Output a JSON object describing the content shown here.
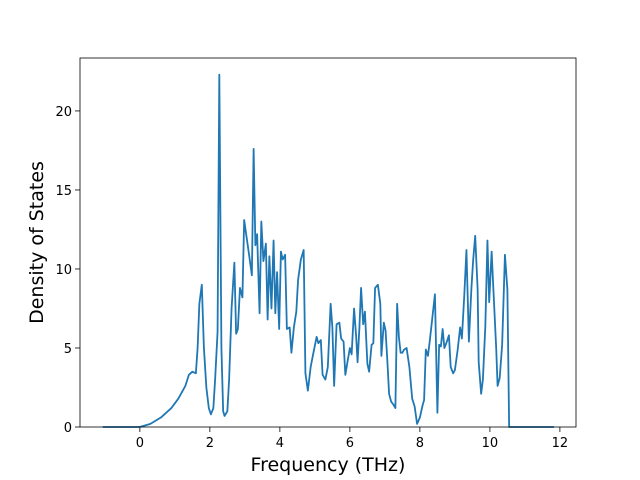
{
  "chart_data": {
    "type": "line",
    "xlabel": "Frequency (THz)",
    "ylabel": "Density of States",
    "color": "#1f77b4",
    "xlim": [
      -1.71,
      12.46
    ],
    "ylim": [
      0,
      23.35
    ],
    "xticks": [
      0,
      2,
      4,
      6,
      8,
      10,
      12
    ],
    "yticks": [
      0,
      5,
      10,
      15,
      20
    ],
    "x": [
      -1.06,
      0,
      0.3,
      0.6,
      0.9,
      1.1,
      1.3,
      1.4,
      1.5,
      1.6,
      1.65,
      1.7,
      1.77,
      1.83,
      1.9,
      1.97,
      2.03,
      2.1,
      2.15,
      2.22,
      2.27,
      2.33,
      2.38,
      2.42,
      2.5,
      2.55,
      2.62,
      2.7,
      2.75,
      2.8,
      2.86,
      2.93,
      2.98,
      3.05,
      3.12,
      3.2,
      3.25,
      3.3,
      3.35,
      3.42,
      3.47,
      3.53,
      3.6,
      3.65,
      3.7,
      3.76,
      3.82,
      3.87,
      3.92,
      3.98,
      4.03,
      4.08,
      4.15,
      4.2,
      4.28,
      4.33,
      4.4,
      4.47,
      4.52,
      4.6,
      4.68,
      4.73,
      4.8,
      4.88,
      4.95,
      5.05,
      5.1,
      5.17,
      5.22,
      5.3,
      5.37,
      5.45,
      5.5,
      5.55,
      5.62,
      5.7,
      5.75,
      5.82,
      5.87,
      5.93,
      6.0,
      6.05,
      6.12,
      6.18,
      6.22,
      6.27,
      6.32,
      6.38,
      6.43,
      6.5,
      6.55,
      6.62,
      6.67,
      6.72,
      6.8,
      6.87,
      6.9,
      6.97,
      7.02,
      7.08,
      7.12,
      7.18,
      7.25,
      7.3,
      7.35,
      7.4,
      7.45,
      7.5,
      7.55,
      7.62,
      7.7,
      7.78,
      7.85,
      7.92,
      8.0,
      8.08,
      8.12,
      8.17,
      8.23,
      8.28,
      8.35,
      8.43,
      8.5,
      8.55,
      8.6,
      8.65,
      8.7,
      8.77,
      8.83,
      8.88,
      8.95,
      9.0,
      9.08,
      9.15,
      9.2,
      9.27,
      9.33,
      9.4,
      9.47,
      9.52,
      9.58,
      9.65,
      9.68,
      9.75,
      9.8,
      9.87,
      9.93,
      9.98,
      10.05,
      10.1,
      10.18,
      10.22,
      10.28,
      10.35,
      10.43,
      10.5,
      10.55,
      10.6,
      11.83
    ],
    "values": [
      0,
      0,
      0.2,
      0.6,
      1.2,
      1.8,
      2.6,
      3.3,
      3.5,
      3.4,
      5,
      7.8,
      9.0,
      5,
      2.5,
      1.2,
      0.8,
      1.2,
      3,
      6,
      22.3,
      5,
      1.0,
      0.7,
      1.0,
      3,
      7.5,
      10.4,
      5.9,
      6.2,
      8.8,
      8.2,
      13.1,
      12,
      10.9,
      9.6,
      17.6,
      11.5,
      12.2,
      7.2,
      13,
      10.5,
      11.6,
      6.8,
      10.8,
      7.5,
      11.8,
      7.2,
      9.8,
      6.2,
      11.1,
      10.6,
      10.9,
      6.2,
      6.3,
      4.7,
      6.3,
      7.3,
      9.3,
      10.6,
      11.2,
      3.4,
      2.3,
      3.8,
      4.6,
      5.7,
      5.3,
      5.5,
      3.3,
      3.0,
      3.8,
      7.8,
      6.3,
      2.6,
      6.5,
      6.6,
      5.6,
      5.4,
      3.3,
      4.1,
      5.0,
      4.6,
      7.5,
      5.7,
      4.1,
      6.2,
      8.8,
      6.5,
      7.3,
      4.0,
      3.5,
      5.2,
      5.3,
      8.8,
      9.0,
      7.8,
      4.5,
      6.6,
      6.1,
      3.8,
      2.1,
      1.6,
      1.4,
      1.2,
      7.8,
      5.7,
      4.7,
      4.7,
      4.9,
      5.0,
      3.8,
      1.8,
      1.3,
      0.2,
      0.6,
      1.4,
      1.7,
      4.9,
      4.5,
      5.4,
      6.8,
      8.4,
      0.9,
      5.2,
      5.1,
      6.2,
      5.0,
      5.4,
      5.8,
      3.8,
      3.4,
      3.6,
      4.9,
      6.3,
      5.6,
      8.4,
      11.2,
      5.4,
      8.7,
      10.5,
      12.1,
      8.7,
      4.1,
      2.1,
      3.0,
      6.4,
      11.8,
      7.9,
      11.1,
      8.7,
      5.0,
      2.6,
      3.1,
      5.2,
      10.9,
      8.7,
      0,
      0,
      0
    ]
  }
}
